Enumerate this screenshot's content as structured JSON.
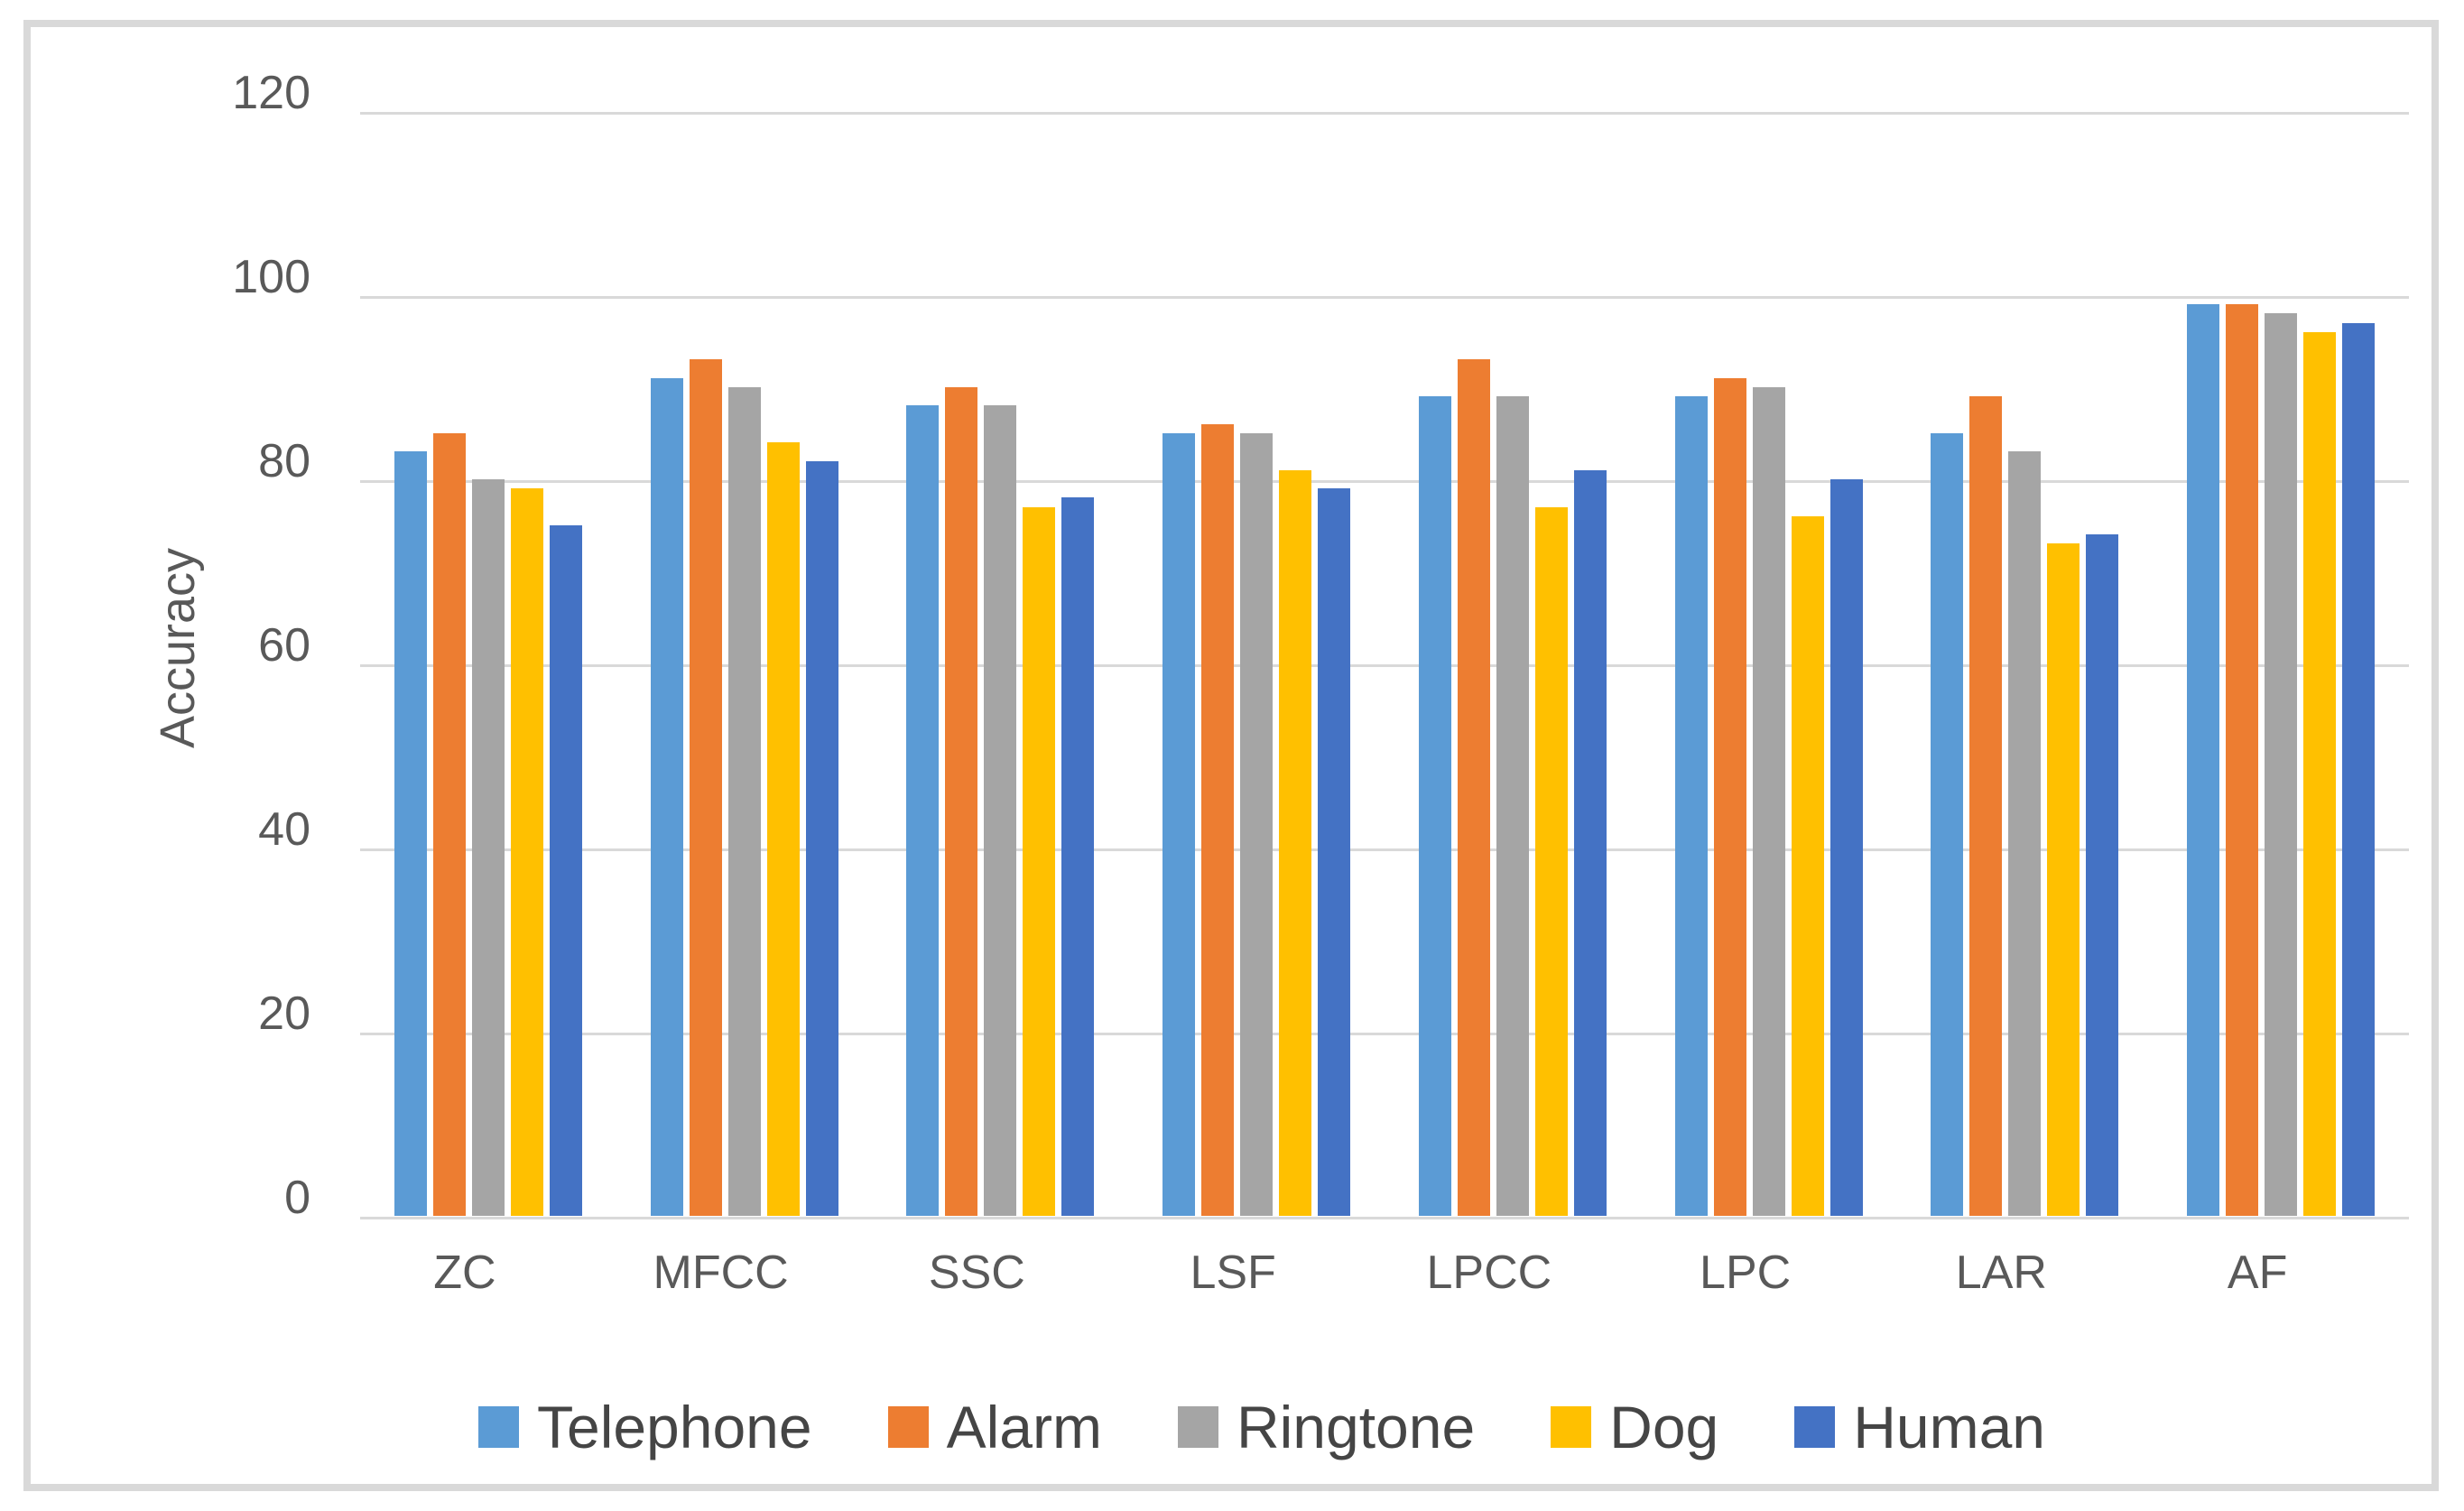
{
  "chart_data": {
    "type": "bar",
    "title": "",
    "xlabel": "",
    "ylabel": "Accuracy",
    "ylim": [
      0,
      120
    ],
    "ytick_step": 20,
    "ytick_labels": [
      "0",
      "20",
      "40",
      "60",
      "80",
      "100",
      "120"
    ],
    "grid": true,
    "legend_position": "bottom",
    "categories": [
      "ZC",
      "MFCC",
      "SSC",
      "LSF",
      "LPCC",
      "LPC",
      "LAR",
      "AF"
    ],
    "series": [
      {
        "name": "Telephone",
        "color": "#5B9BD5",
        "values": [
          83,
          91,
          88,
          85,
          89,
          89,
          85,
          99
        ]
      },
      {
        "name": "Alarm",
        "color": "#ED7D31",
        "values": [
          85,
          93,
          90,
          86,
          93,
          91,
          89,
          99
        ]
      },
      {
        "name": "Ringtone",
        "color": "#A5A5A5",
        "values": [
          80,
          90,
          88,
          85,
          89,
          90,
          83,
          98
        ]
      },
      {
        "name": "Dog",
        "color": "#FFC000",
        "values": [
          79,
          84,
          77,
          81,
          77,
          76,
          73,
          96
        ]
      },
      {
        "name": "Human",
        "color": "#4472C4",
        "values": [
          75,
          82,
          78,
          79,
          81,
          80,
          74,
          97
        ]
      }
    ]
  },
  "colors": {
    "gridline": "#D9D9D9",
    "frame_border": "#D9D9D9",
    "axis_text": "#595959",
    "legend_text": "#454545",
    "background": "#FFFFFF"
  }
}
